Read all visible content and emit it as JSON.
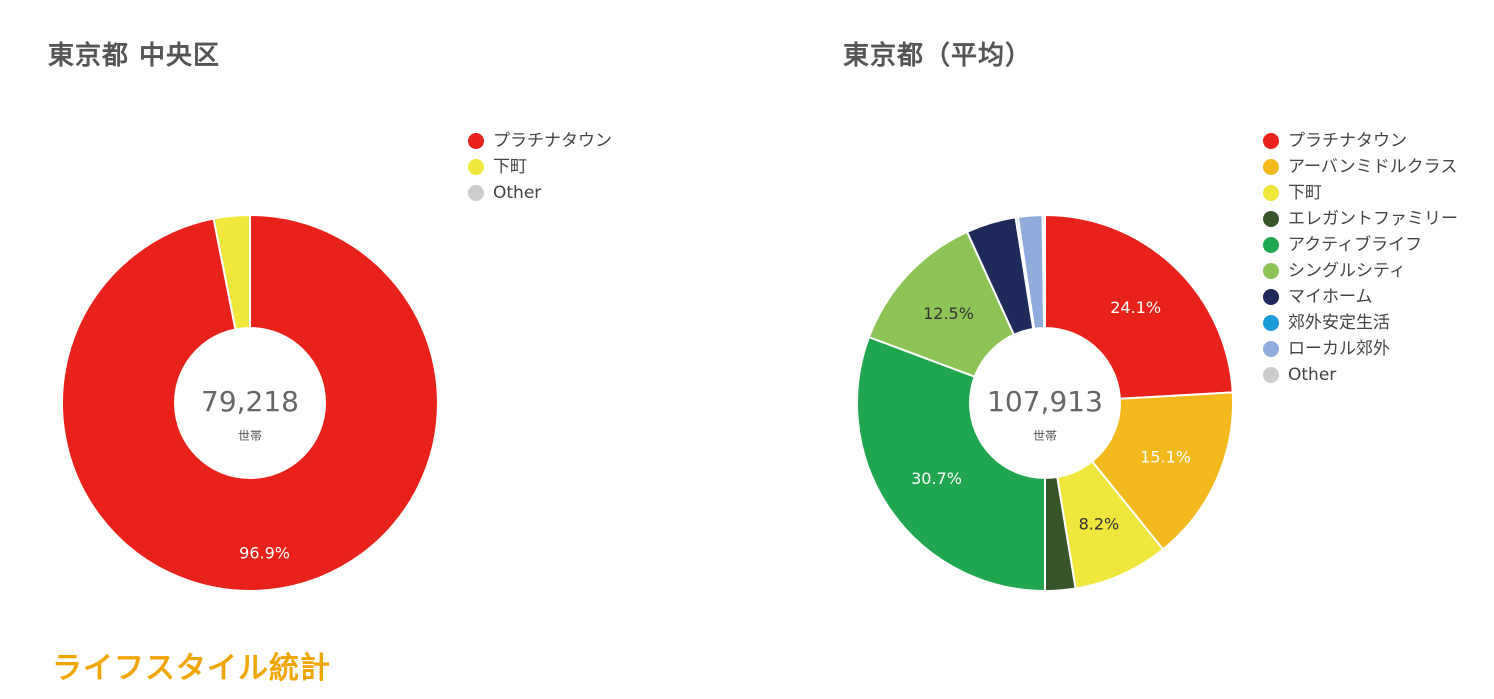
{
  "section_heading": "ライフスタイル統計",
  "chart_data": [
    {
      "type": "pie",
      "title": "東京都 中央区",
      "center_value": "79,218",
      "center_unit": "世帯",
      "legend_placement": "right",
      "slices": [
        {
          "name": "プラチナタウン",
          "value": 96.9,
          "label": "96.9%",
          "color": "#e8211b"
        },
        {
          "name": "下町",
          "value": 3.1,
          "label": "",
          "color": "#f0e63c"
        },
        {
          "name": "Other",
          "value": 0,
          "label": "",
          "color": "#cccccc"
        }
      ]
    },
    {
      "type": "pie",
      "title": "東京都（平均）",
      "center_value": "107,913",
      "center_unit": "世帯",
      "legend_placement": "right",
      "slices": [
        {
          "name": "プラチナタウン",
          "value": 24.1,
          "label": "24.1%",
          "color": "#e8211b"
        },
        {
          "name": "アーバンミドルクラス",
          "value": 15.1,
          "label": "15.1%",
          "color": "#f3b81b"
        },
        {
          "name": "下町",
          "value": 8.2,
          "label": "8.2%",
          "color": "#f0e63c"
        },
        {
          "name": "エレガントファミリー",
          "value": 2.6,
          "label": "",
          "color": "#37542b"
        },
        {
          "name": "アクティブライフ",
          "value": 30.7,
          "label": "30.7%",
          "color": "#1fa64f"
        },
        {
          "name": "シングルシティ",
          "value": 12.5,
          "label": "12.5%",
          "color": "#8cc456"
        },
        {
          "name": "マイホーム",
          "value": 4.3,
          "label": "",
          "color": "#1e2a5a"
        },
        {
          "name": "郊外安定生活",
          "value": 0.2,
          "label": "",
          "color": "#1b9bd7"
        },
        {
          "name": "ローカル郊外",
          "value": 2.1,
          "label": "",
          "color": "#90acdc"
        },
        {
          "name": "Other",
          "value": 0.2,
          "label": "",
          "color": "#cccccc"
        }
      ]
    }
  ]
}
